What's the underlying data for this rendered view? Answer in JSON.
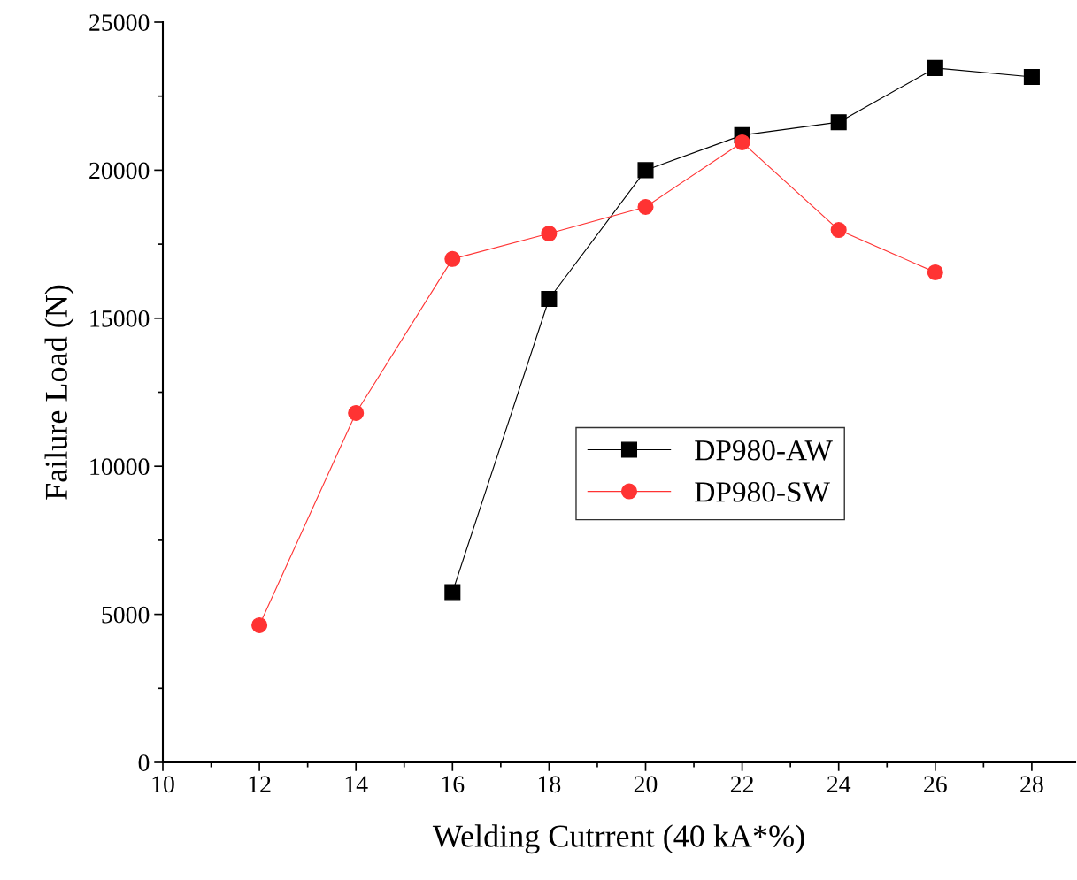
{
  "chart_data": {
    "type": "line",
    "xlabel": "Welding Cutrrent (40 kA*%)",
    "ylabel": "Failure Load (N)",
    "xlim": [
      10,
      28.9
    ],
    "xticks": [
      10,
      12,
      14,
      16,
      18,
      20,
      22,
      24,
      26,
      28
    ],
    "ylim": [
      0,
      25000
    ],
    "yticks": [
      0,
      5000,
      10000,
      15000,
      20000,
      25000
    ],
    "legend": "center",
    "line_style": "solid",
    "series": [
      {
        "name": "DP980-AW",
        "color": "#000000",
        "marker": "square",
        "x": [
          16,
          18,
          20,
          22,
          24,
          26,
          28
        ],
        "values": [
          5750,
          15650,
          20000,
          21180,
          21620,
          23450,
          23150
        ]
      },
      {
        "name": "DP980-SW",
        "color": "#ff3333",
        "marker": "circle",
        "x": [
          12,
          14,
          16,
          18,
          20,
          22,
          24,
          26
        ],
        "values": [
          4630,
          11800,
          17000,
          17860,
          18760,
          20940,
          17980,
          16550
        ]
      }
    ]
  }
}
